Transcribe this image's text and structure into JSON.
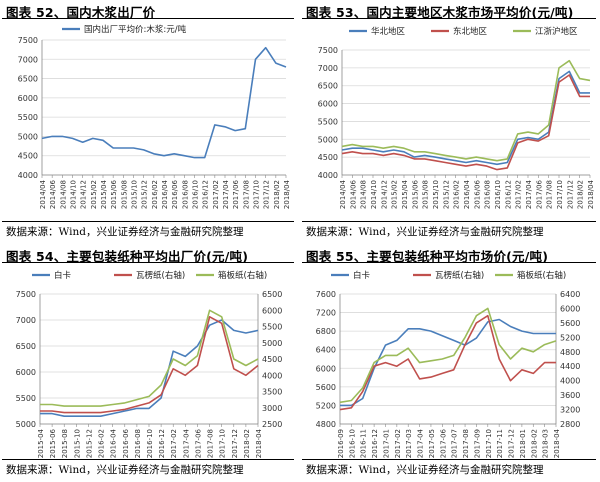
{
  "source_text": "数据来源：Wind，兴业证券经济与金融研究院整理",
  "chart_data": [
    {
      "title": "图表 52、国内木浆出厂价",
      "type": "line",
      "legend_position": "top",
      "grid": true,
      "x_labels": [
        "2014/04",
        "2014/06",
        "2014/08",
        "2014/10",
        "2014/12",
        "2015/02",
        "2015/04",
        "2015/06",
        "2015/08",
        "2015/10",
        "2015/12",
        "2016/02",
        "2016/04",
        "2016/06",
        "2016/08",
        "2016/10",
        "2016/12",
        "2017/02",
        "2017/04",
        "2017/06",
        "2017/08",
        "2017/10",
        "2017/12",
        "2018/02",
        "2018/04"
      ],
      "ylim": [
        4000,
        7500
      ],
      "yticks": [
        4000,
        4500,
        5000,
        5500,
        6000,
        6500,
        7000,
        7500
      ],
      "series": [
        {
          "name": "国内出厂平均价:木浆:元/吨",
          "color": "#4a7ebb",
          "axis": "left",
          "values": [
            4950,
            5000,
            5000,
            4950,
            4850,
            4950,
            4900,
            4700,
            4700,
            4700,
            4650,
            4550,
            4500,
            4550,
            4500,
            4450,
            4450,
            5300,
            5250,
            5150,
            5200,
            7000,
            7300,
            6900,
            6800
          ]
        }
      ]
    },
    {
      "title": "图表 53、国内主要地区木浆市场平均价(元/吨)",
      "type": "line",
      "legend_position": "top",
      "grid": true,
      "x_labels": [
        "2014/04",
        "2014/06",
        "2014/08",
        "2014/10",
        "2014/12",
        "2015/02",
        "2015/04",
        "2015/06",
        "2015/08",
        "2015/10",
        "2015/12",
        "2016/02",
        "2016/04",
        "2016/06",
        "2016/08",
        "2016/10",
        "2016/12",
        "2017/02",
        "2017/04",
        "2017/06",
        "2017/08",
        "2017/10",
        "2017/12",
        "2018/02",
        "2018/04"
      ],
      "ylim": [
        4000,
        7500
      ],
      "yticks": [
        4000,
        4500,
        5000,
        5500,
        6000,
        6500,
        7000,
        7500
      ],
      "series": [
        {
          "name": "华北地区",
          "color": "#4a7ebb",
          "axis": "left",
          "values": [
            4700,
            4750,
            4750,
            4700,
            4650,
            4700,
            4650,
            4500,
            4550,
            4500,
            4450,
            4400,
            4350,
            4400,
            4350,
            4300,
            4350,
            5000,
            5050,
            5000,
            5200,
            6700,
            6900,
            6300,
            6300
          ]
        },
        {
          "name": "东北地区",
          "color": "#c0504d",
          "axis": "left",
          "values": [
            4600,
            4650,
            4600,
            4600,
            4550,
            4600,
            4550,
            4450,
            4450,
            4400,
            4350,
            4300,
            4250,
            4300,
            4250,
            4150,
            4200,
            4900,
            5000,
            4950,
            5100,
            6600,
            6800,
            6200,
            6200
          ]
        },
        {
          "name": "江浙沪地区",
          "color": "#9bbb59",
          "axis": "left",
          "values": [
            4800,
            4850,
            4800,
            4800,
            4750,
            4800,
            4750,
            4650,
            4650,
            4600,
            4550,
            4500,
            4450,
            4500,
            4450,
            4400,
            4450,
            5150,
            5200,
            5150,
            5400,
            7000,
            7200,
            6700,
            6650
          ]
        }
      ]
    },
    {
      "title": "图表 54、主要包装纸种平均出厂价(元/吨)",
      "type": "line",
      "legend_position": "top",
      "grid": true,
      "x_labels": [
        "2015-04",
        "2015-06",
        "2015-08",
        "2015-10",
        "2015-12",
        "2016-02",
        "2016-04",
        "2016-06",
        "2016-08",
        "2016-10",
        "2016-12",
        "2017-02",
        "2017-04",
        "2017-06",
        "2017-08",
        "2017-10",
        "2017-12",
        "2018-02",
        "2018-04"
      ],
      "ylim": [
        5000,
        7500
      ],
      "yticks": [
        5000,
        5500,
        6000,
        6500,
        7000,
        7500
      ],
      "y2lim": [
        2500,
        6500
      ],
      "y2ticks": [
        2500,
        3000,
        3500,
        4000,
        4500,
        5000,
        5500,
        6000,
        6500
      ],
      "series": [
        {
          "name": "白卡",
          "color": "#4a7ebb",
          "axis": "left",
          "values": [
            5200,
            5200,
            5150,
            5150,
            5150,
            5150,
            5200,
            5250,
            5300,
            5300,
            5500,
            6400,
            6300,
            6500,
            6900,
            7000,
            6800,
            6750,
            6800
          ]
        },
        {
          "name": "瓦楞纸(右轴)",
          "color": "#c0504d",
          "axis": "right",
          "values": [
            2900,
            2900,
            2850,
            2850,
            2850,
            2850,
            2900,
            2950,
            3050,
            3150,
            3400,
            4200,
            4000,
            4300,
            5800,
            5600,
            4200,
            4000,
            4300
          ]
        },
        {
          "name": "箱板纸(右轴)",
          "color": "#9bbb59",
          "axis": "right",
          "values": [
            3100,
            3100,
            3050,
            3050,
            3050,
            3050,
            3100,
            3150,
            3250,
            3350,
            3700,
            4500,
            4300,
            4600,
            6000,
            5800,
            4500,
            4300,
            4500
          ]
        }
      ]
    },
    {
      "title": "图表 55、主要包装纸种平均市场价(元/吨)",
      "type": "line",
      "legend_position": "top",
      "grid": true,
      "x_labels": [
        "2016-09",
        "2016-10",
        "2016-11",
        "2016-12",
        "2017-01",
        "2017-02",
        "2017-03",
        "2017-04",
        "2017-05",
        "2017-06",
        "2017-07",
        "2017-08",
        "2017-09",
        "2017-10",
        "2017-11",
        "2017-12",
        "2018-01",
        "2018-02",
        "2018-03",
        "2018-04"
      ],
      "ylim": [
        4800,
        7600
      ],
      "yticks": [
        4800,
        5200,
        5600,
        6000,
        6400,
        6800,
        7200,
        7600
      ],
      "y2lim": [
        2800,
        6400
      ],
      "y2ticks": [
        2800,
        3200,
        3600,
        4000,
        4400,
        4800,
        5200,
        5600,
        6000,
        6400
      ],
      "series": [
        {
          "name": "白卡",
          "color": "#4a7ebb",
          "axis": "left",
          "values": [
            5200,
            5200,
            5350,
            6000,
            6500,
            6600,
            6850,
            6850,
            6800,
            6700,
            6600,
            6500,
            6650,
            7000,
            7050,
            6900,
            6800,
            6750,
            6750,
            6750
          ]
        },
        {
          "name": "瓦楞纸(右轴)",
          "color": "#c0504d",
          "axis": "right",
          "values": [
            3200,
            3250,
            3700,
            4400,
            4500,
            4400,
            4600,
            4050,
            4100,
            4200,
            4300,
            5000,
            5600,
            5800,
            4600,
            4000,
            4300,
            4200,
            4500,
            4500
          ]
        },
        {
          "name": "箱板纸(右轴)",
          "color": "#9bbb59",
          "axis": "right",
          "values": [
            3400,
            3450,
            3800,
            4500,
            4700,
            4700,
            4900,
            4500,
            4550,
            4600,
            4700,
            5200,
            5800,
            6000,
            5000,
            4600,
            4900,
            4800,
            5000,
            5100
          ]
        }
      ]
    }
  ]
}
